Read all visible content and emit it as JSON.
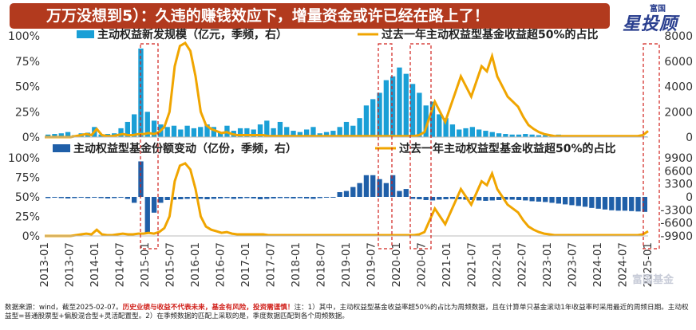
{
  "banner": {
    "title": "万万没想到5）：久违的赚钱效应下，增量资金或许已经在路上了！"
  },
  "logo": {
    "small": "富国",
    "big": "星投顾"
  },
  "watermark": "富国基金",
  "footnote": {
    "source": "数据来源：wind，截至2025-02-07。",
    "risk": "历史业绩与收益不代表未来，基金有风险，投资需谨慎！",
    "note": "注：1）其中，主动权益型基金收益率超50%的占比为周频数据，且在计算单只基金滚动1年收益率时采用最近的周频日期。主动权益型=普通股票型+偏股混合型+灵活配置型。2）在季频数据的匹配上采取的是，季度数据匹配到各个周频数据。"
  },
  "chart_data": [
    {
      "type": "bar",
      "series": [
        {
          "name": "主动权益新发规模（亿元，季频，右）",
          "axis": "right",
          "color": "#1a9fd6"
        },
        {
          "name": "过去一年主动权益型基金收益超50%的占比",
          "axis": "left",
          "type": "line",
          "color": "#f0a500"
        }
      ],
      "left_axis": {
        "ticks": [
          "0%",
          "25%",
          "50%",
          "75%",
          "100%"
        ],
        "ylim": [
          0,
          100
        ]
      },
      "right_axis": {
        "ticks": [
          "0",
          "2000",
          "4000",
          "6000",
          "8000"
        ],
        "ylim": [
          0,
          8000
        ]
      },
      "quarterly_values": [
        200,
        250,
        300,
        400,
        150,
        300,
        350,
        800,
        200,
        250,
        300,
        700,
        1200,
        1800,
        7000,
        2000,
        1300,
        1000,
        800,
        900,
        600,
        900,
        700,
        800,
        1000,
        800,
        400,
        900,
        500,
        700,
        700,
        600,
        1000,
        1300,
        700,
        1200,
        800,
        500,
        400,
        600,
        800,
        300,
        400,
        500,
        800,
        1200,
        900,
        1500,
        2500,
        3000,
        3500,
        4500,
        4800,
        5500,
        5000,
        4200,
        3500,
        2500,
        2800,
        1800,
        1500,
        1000,
        600,
        700,
        800,
        600,
        500,
        400,
        300,
        250,
        200,
        200,
        250,
        200,
        150,
        150,
        150,
        200,
        150,
        150,
        100,
        100,
        50,
        50,
        50,
        50,
        50,
        50,
        50,
        50,
        50
      ],
      "line_values": [
        0,
        0,
        0,
        0,
        0,
        0,
        1,
        2,
        3,
        2,
        8,
        2,
        1,
        1,
        2,
        3,
        2,
        2,
        3,
        3,
        4,
        3,
        5,
        10,
        25,
        70,
        90,
        93,
        85,
        60,
        25,
        12,
        8,
        6,
        4,
        5,
        3,
        2,
        2,
        2,
        2,
        2,
        2,
        1,
        1,
        1,
        1,
        1,
        1,
        1,
        1,
        1,
        1,
        1,
        1,
        1,
        1,
        1,
        1,
        1,
        1,
        1,
        1,
        1,
        1,
        1,
        1,
        1,
        1,
        1,
        1,
        1,
        2,
        5,
        20,
        35,
        25,
        15,
        30,
        45,
        60,
        50,
        40,
        55,
        70,
        65,
        80,
        60,
        50,
        40,
        35,
        30,
        20,
        12,
        8,
        5,
        3,
        2,
        1,
        1,
        1,
        1,
        1,
        1,
        1,
        1,
        1,
        1,
        1,
        1,
        1,
        1,
        1,
        1,
        1,
        2,
        6
      ]
    },
    {
      "type": "bar",
      "series": [
        {
          "name": "主动权益型基金份额变动（亿份，季频，右）",
          "axis": "right",
          "color": "#1f5fa8"
        },
        {
          "name": "过去一年主动权益型基金收益超50%的占比",
          "axis": "left",
          "type": "line",
          "color": "#f0a500"
        }
      ],
      "left_axis": {
        "ticks": [
          "0%",
          "25%",
          "50%",
          "75%",
          "100%"
        ],
        "ylim": [
          0,
          100
        ]
      },
      "right_axis": {
        "ticks": [
          "-9900",
          "-6600",
          "-3300",
          "0",
          "3300",
          "6600",
          "9900"
        ],
        "ylim": [
          -9900,
          9900
        ]
      },
      "quarterly_values": [
        -300,
        -200,
        -300,
        -400,
        -300,
        -200,
        -300,
        -200,
        -300,
        -400,
        -300,
        -200,
        -500,
        -1500,
        9000,
        -9000,
        -4000,
        -1500,
        -800,
        -700,
        -600,
        -500,
        -400,
        -500,
        -600,
        -500,
        -400,
        -300,
        -500,
        -400,
        -300,
        -400,
        -600,
        -500,
        -400,
        -300,
        -300,
        -400,
        -300,
        -400,
        -500,
        -300,
        -200,
        -100,
        1200,
        1500,
        2500,
        3500,
        5500,
        5500,
        4500,
        3500,
        5500,
        1500,
        2000,
        -500,
        -600,
        -800,
        -900,
        -700,
        -600,
        -500,
        -600,
        -700,
        -800,
        -900,
        -1000,
        -900,
        -800,
        -700,
        -700,
        -800,
        -900,
        -1100,
        -1200,
        -1300,
        -1500,
        -1700,
        -1900,
        -2100,
        -2300,
        -2500,
        -2800,
        -3000,
        -3200,
        -3400,
        -3500,
        -3500,
        -3600,
        -3700,
        -3800
      ],
      "line_values": [
        0,
        0,
        0,
        0,
        0,
        0,
        1,
        2,
        3,
        2,
        8,
        2,
        1,
        1,
        2,
        3,
        2,
        2,
        3,
        3,
        4,
        3,
        5,
        10,
        25,
        70,
        90,
        93,
        85,
        60,
        25,
        12,
        8,
        6,
        4,
        5,
        3,
        2,
        2,
        2,
        2,
        2,
        2,
        1,
        1,
        1,
        1,
        1,
        1,
        1,
        1,
        1,
        1,
        1,
        1,
        1,
        1,
        1,
        1,
        1,
        1,
        1,
        1,
        1,
        1,
        1,
        1,
        1,
        1,
        1,
        1,
        1,
        2,
        5,
        20,
        35,
        25,
        15,
        30,
        45,
        60,
        50,
        40,
        55,
        70,
        65,
        80,
        60,
        50,
        40,
        35,
        30,
        20,
        12,
        8,
        5,
        3,
        2,
        1,
        1,
        1,
        1,
        1,
        1,
        1,
        1,
        1,
        1,
        1,
        1,
        1,
        1,
        1,
        1,
        1,
        2,
        6
      ]
    }
  ],
  "x_axis": {
    "ticks": [
      "2013-01",
      "2013-07",
      "2014-01",
      "2014-07",
      "2015-01",
      "2015-07",
      "2016-01",
      "2016-07",
      "2017-01",
      "2017-07",
      "2018-01",
      "2018-07",
      "2019-01",
      "2019-07",
      "2020-01",
      "2020-07",
      "2021-01",
      "2021-07",
      "2022-01",
      "2022-07",
      "2023-01",
      "2023-07",
      "2024-01",
      "2024-07",
      "2025-01"
    ]
  },
  "highlight_periods": [
    "2015-01",
    "2019-07",
    "2020-07",
    "2025-01"
  ]
}
